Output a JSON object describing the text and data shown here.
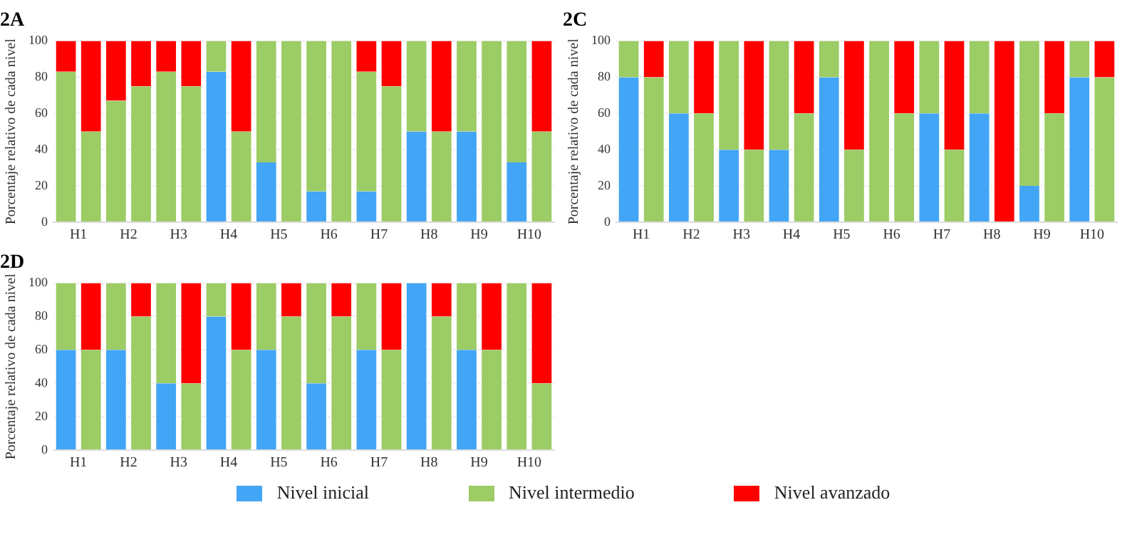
{
  "chart_data": [
    {
      "type": "bar",
      "title": "2A",
      "ylabel": "Porcentaje relativo de cada nivel",
      "stacked": true,
      "grid": "y",
      "legend": false,
      "ylim": [
        0,
        100
      ],
      "yticks": [
        0,
        20,
        40,
        60,
        80,
        100
      ],
      "categories": [
        "H1",
        null,
        "H2",
        null,
        "H3",
        null,
        "H4",
        null,
        "H5",
        null,
        "H6",
        null,
        "H7",
        null,
        "H8",
        null,
        "H9",
        null,
        "H10",
        null
      ],
      "series": [
        {
          "color": "#42a5f5",
          "values": [
            0,
            0,
            0,
            0,
            0,
            0,
            83,
            0,
            33,
            0,
            17,
            0,
            17,
            0,
            50,
            0,
            50,
            0,
            33,
            0
          ]
        },
        {
          "color": "#9ccc65",
          "values": [
            83,
            50,
            67,
            75,
            83,
            75,
            17,
            50,
            67,
            100,
            83,
            100,
            66,
            75,
            50,
            50,
            50,
            100,
            67,
            50
          ]
        },
        {
          "color": "#ff0000",
          "values": [
            17,
            50,
            33,
            25,
            17,
            25,
            0,
            50,
            0,
            0,
            0,
            0,
            17,
            25,
            0,
            50,
            0,
            0,
            0,
            50
          ]
        }
      ]
    },
    {
      "type": "bar",
      "title": "2C",
      "ylabel": "Porcentaje relativo de cada nivel",
      "stacked": true,
      "grid": "y",
      "legend": false,
      "ylim": [
        0,
        100
      ],
      "yticks": [
        0,
        20,
        40,
        60,
        80,
        100
      ],
      "categories": [
        "H1",
        null,
        "H2",
        null,
        "H3",
        null,
        "H4",
        null,
        "H5",
        null,
        "H6",
        null,
        "H7",
        null,
        "H8",
        null,
        "H9",
        null,
        "H10",
        null
      ],
      "series": [
        {
          "color": "#42a5f5",
          "values": [
            80,
            0,
            60,
            0,
            40,
            0,
            40,
            0,
            80,
            0,
            0,
            0,
            60,
            0,
            60,
            0,
            20,
            0,
            80,
            0
          ]
        },
        {
          "color": "#9ccc65",
          "values": [
            20,
            80,
            40,
            60,
            60,
            40,
            60,
            60,
            20,
            40,
            100,
            60,
            40,
            40,
            40,
            0,
            80,
            60,
            20,
            80
          ]
        },
        {
          "color": "#ff0000",
          "values": [
            0,
            20,
            0,
            40,
            0,
            60,
            0,
            40,
            0,
            60,
            0,
            40,
            0,
            60,
            0,
            100,
            0,
            40,
            0,
            20
          ]
        }
      ]
    },
    {
      "type": "bar",
      "title": "2D",
      "ylabel": "Porcentaje relativo de cada nivel",
      "stacked": true,
      "grid": "y",
      "legend": "bottom",
      "ylim": [
        0,
        100
      ],
      "yticks": [
        0,
        20,
        40,
        60,
        80,
        100
      ],
      "categories": [
        "H1",
        null,
        "H2",
        null,
        "H3",
        null,
        "H4",
        null,
        "H5",
        null,
        "H6",
        null,
        "H7",
        null,
        "H8",
        null,
        "H9",
        null,
        "H10",
        null
      ],
      "series": [
        {
          "name": "Nivel inicial",
          "color": "#42a5f5",
          "values": [
            60,
            0,
            60,
            0,
            40,
            0,
            80,
            0,
            60,
            0,
            40,
            0,
            60,
            0,
            100,
            0,
            60,
            0,
            0,
            0
          ]
        },
        {
          "name": "Nivel intermedio",
          "color": "#9ccc65",
          "values": [
            40,
            60,
            40,
            80,
            60,
            40,
            20,
            60,
            40,
            80,
            60,
            80,
            40,
            60,
            0,
            80,
            40,
            60,
            100,
            40
          ]
        },
        {
          "name": "Nivel avanzado",
          "color": "#ff0000",
          "values": [
            0,
            40,
            0,
            20,
            0,
            60,
            0,
            40,
            0,
            20,
            0,
            20,
            0,
            40,
            0,
            20,
            0,
            40,
            0,
            60
          ]
        }
      ]
    }
  ]
}
